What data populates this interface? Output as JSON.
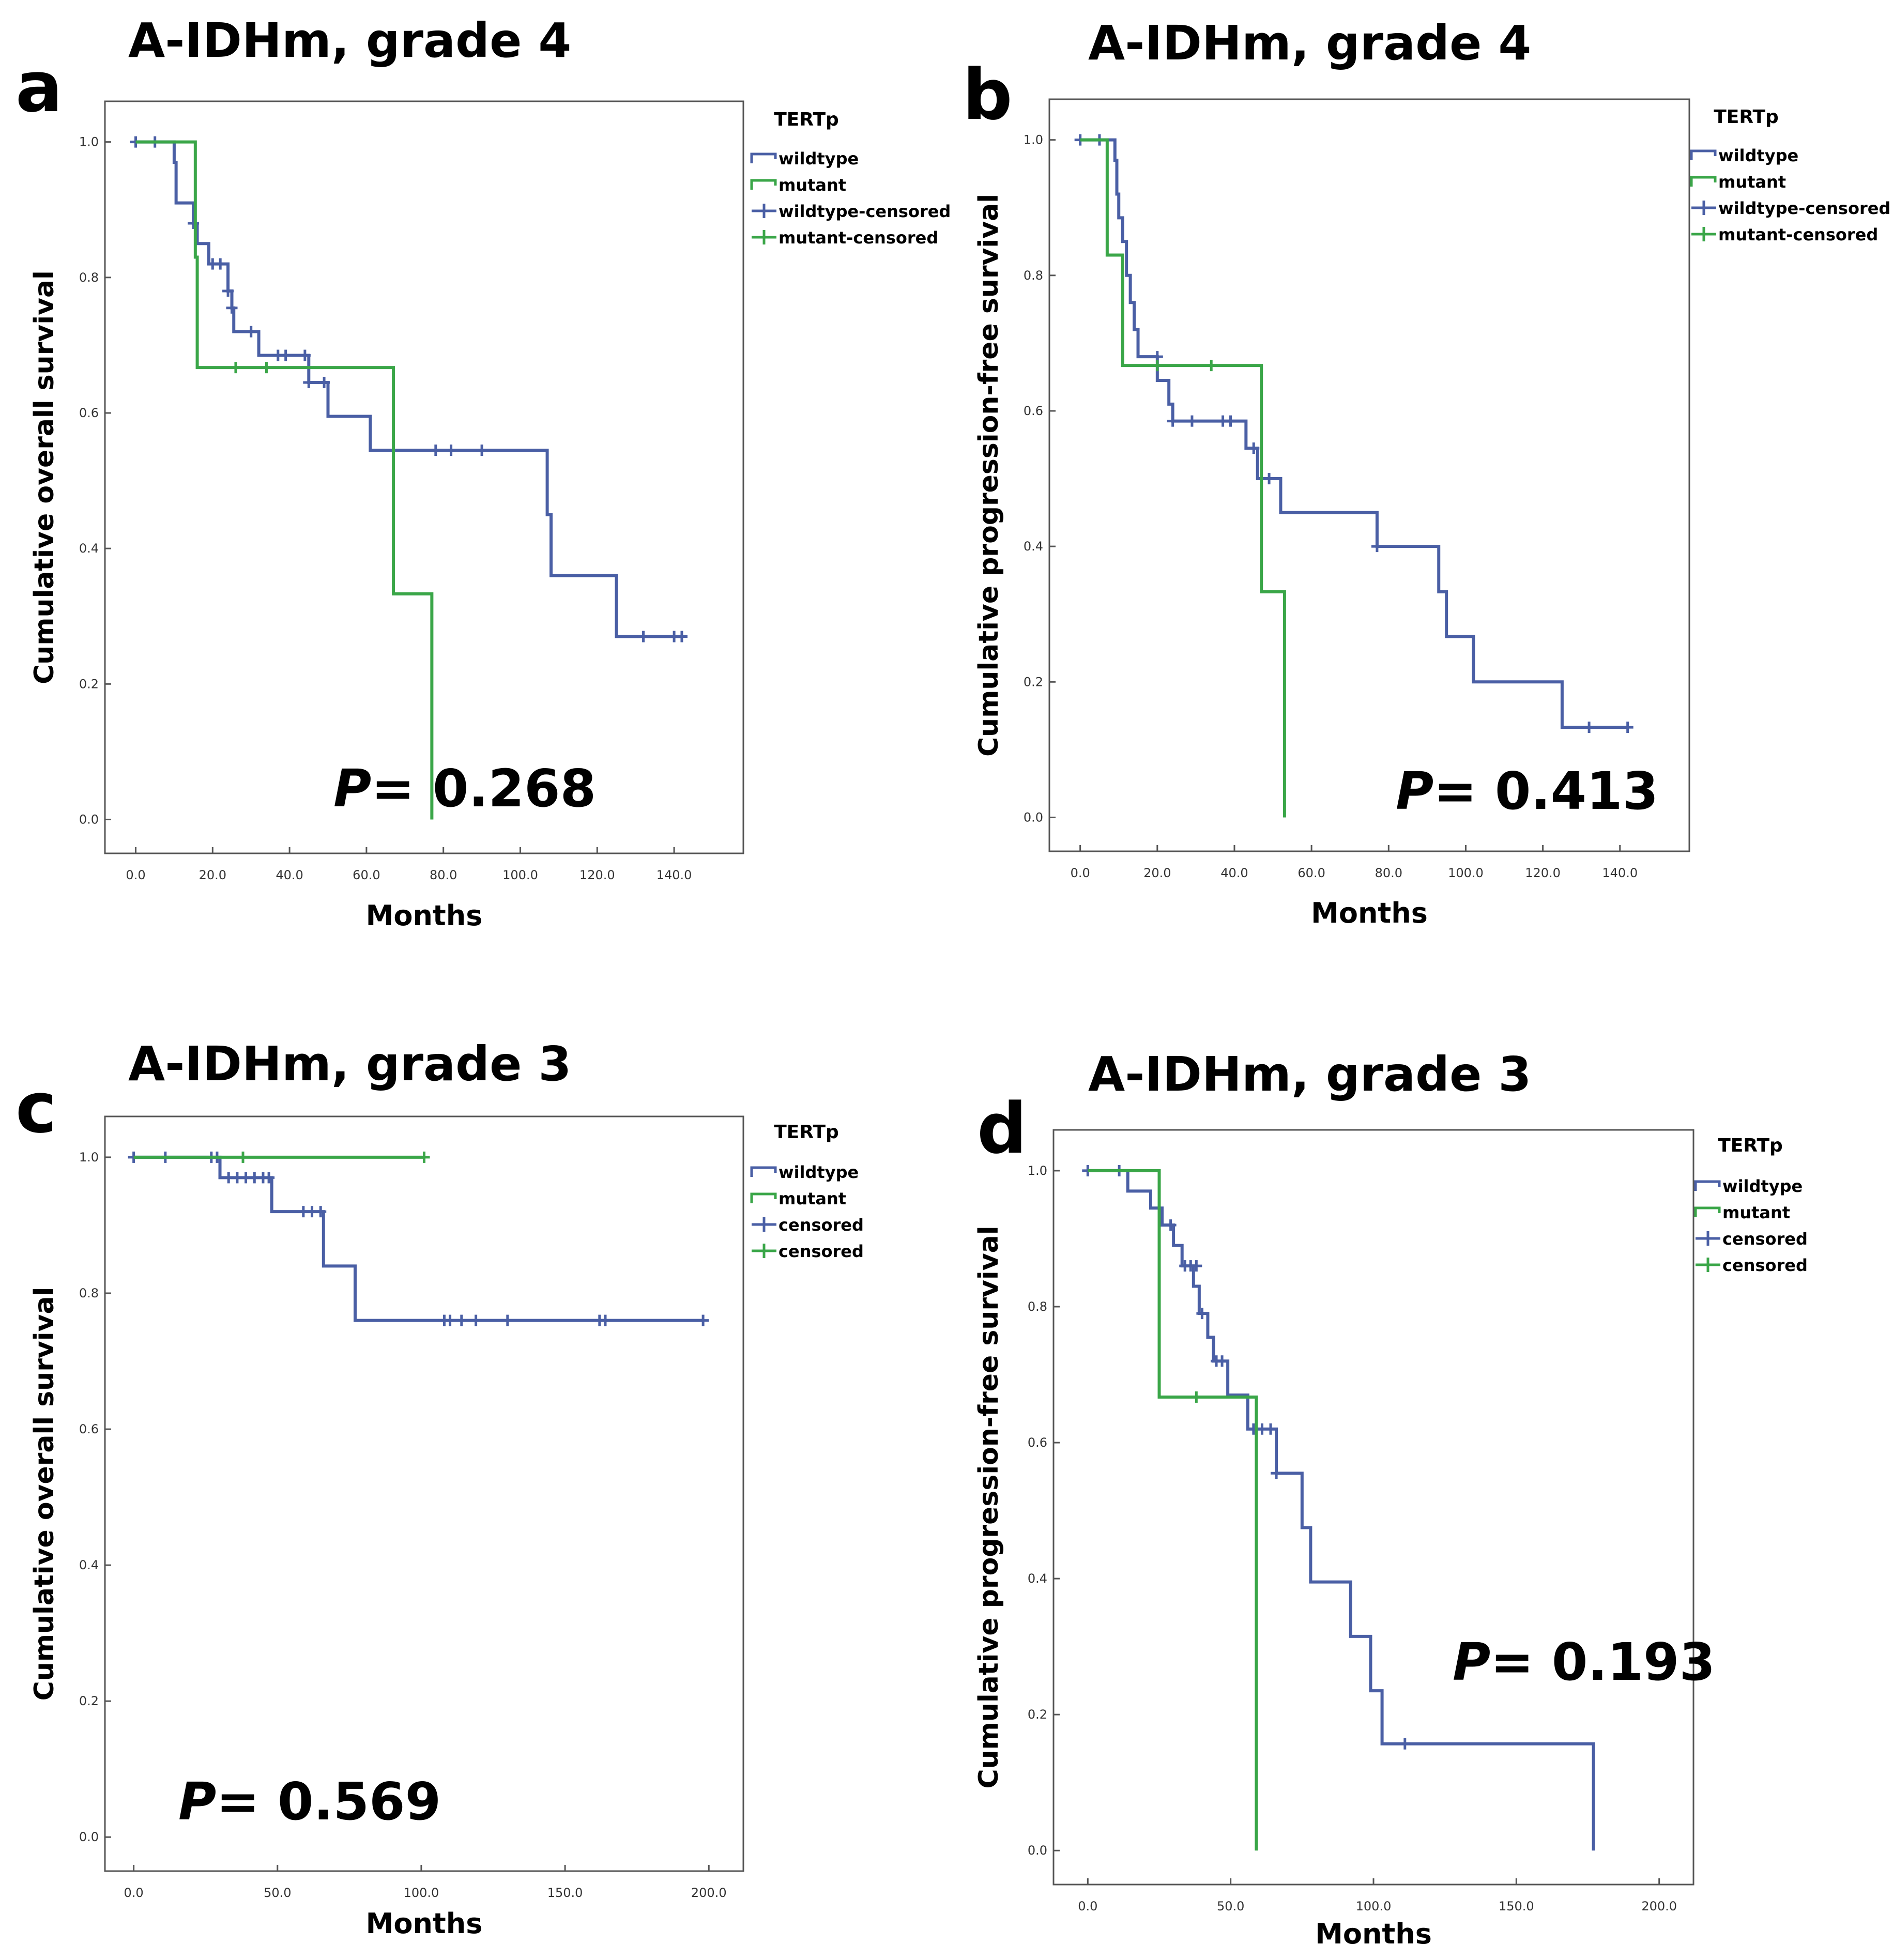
{
  "figure": {
    "panels": [
      {
        "letter": "a",
        "title": "A-IDHm, grade 4",
        "xlabel": "Months",
        "ylabel": "Cumulative overall survival",
        "pvalue_prefix": "P",
        "pvalue_text": "= 0.268",
        "legend_title": "TERTp",
        "legend_items": [
          "wildtype",
          "mutant",
          "wildtype-censored",
          "mutant-censored"
        ],
        "xticks": [
          "0.0",
          "20.0",
          "40.0",
          "60.0",
          "80.0",
          "100.0",
          "120.0",
          "140.0"
        ],
        "yticks": [
          "0.0",
          "0.2",
          "0.4",
          "0.6",
          "0.8",
          "1.0"
        ]
      },
      {
        "letter": "b",
        "title": "A-IDHm, grade 4",
        "xlabel": "Months",
        "ylabel": "Cumulative progression-free survival",
        "pvalue_prefix": "P",
        "pvalue_text": "= 0.413",
        "legend_title": "TERTp",
        "legend_items": [
          "wildtype",
          "mutant",
          "wildtype-censored",
          "mutant-censored"
        ],
        "xticks": [
          "0.0",
          "20.0",
          "40.0",
          "60.0",
          "80.0",
          "100.0",
          "120.0",
          "140.0"
        ],
        "yticks": [
          "0.0",
          "0.2",
          "0.4",
          "0.6",
          "0.8",
          "1.0"
        ]
      },
      {
        "letter": "c",
        "title": "A-IDHm, grade 3",
        "xlabel": "Months",
        "ylabel": "Cumulative overall survival",
        "pvalue_prefix": "P",
        "pvalue_text": "= 0.569",
        "legend_title": "TERTp",
        "legend_items": [
          "wildtype",
          "mutant",
          "censored",
          "censored"
        ],
        "xticks": [
          "0.0",
          "50.0",
          "100.0",
          "150.0",
          "200.0"
        ],
        "yticks": [
          "0.0",
          "0.2",
          "0.4",
          "0.6",
          "0.8",
          "1.0"
        ]
      },
      {
        "letter": "d",
        "title": "A-IDHm, grade 3",
        "xlabel": "Months",
        "ylabel": "Cumulative progression-free survival",
        "pvalue_prefix": "P",
        "pvalue_text": "= 0.193",
        "legend_title": "TERTp",
        "legend_items": [
          "wildtype",
          "mutant",
          "censored",
          "censored"
        ],
        "xticks": [
          "0.0",
          "50.0",
          "100.0",
          "150.0",
          "200.0"
        ],
        "yticks": [
          "0.0",
          "0.2",
          "0.4",
          "0.6",
          "0.8",
          "1.0"
        ]
      }
    ]
  },
  "chart_data": [
    {
      "type": "line",
      "title": "A-IDHm, grade 4",
      "xlabel": "Months",
      "ylabel": "Cumulative overall survival",
      "xlim": [
        -8,
        158
      ],
      "ylim": [
        -0.05,
        1.06
      ],
      "grid": false,
      "legend": "right",
      "series": [
        {
          "name": "wildtype",
          "color": "#4a5fa5",
          "steps": [
            [
              0,
              1.0
            ],
            [
              10,
              0.97
            ],
            [
              10.5,
              0.91
            ],
            [
              15,
              0.88
            ],
            [
              16,
              0.85
            ],
            [
              19,
              0.82
            ],
            [
              24,
              0.78
            ],
            [
              25,
              0.755
            ],
            [
              25.5,
              0.72
            ],
            [
              32,
              0.685
            ],
            [
              45,
              0.645
            ],
            [
              50,
              0.595
            ],
            [
              61,
              0.545
            ],
            [
              107,
              0.45
            ],
            [
              108,
              0.36
            ],
            [
              125,
              0.27
            ],
            [
              142,
              0.27
            ]
          ],
          "censored": [
            [
              0,
              1.0
            ],
            [
              5,
              1.0
            ],
            [
              15,
              0.88
            ],
            [
              20,
              0.82
            ],
            [
              22,
              0.82
            ],
            [
              24,
              0.78
            ],
            [
              25,
              0.755
            ],
            [
              30,
              0.72
            ],
            [
              37,
              0.685
            ],
            [
              39,
              0.685
            ],
            [
              44,
              0.685
            ],
            [
              45,
              0.645
            ],
            [
              49,
              0.645
            ],
            [
              78,
              0.545
            ],
            [
              82,
              0.545
            ],
            [
              90,
              0.545
            ],
            [
              132,
              0.27
            ],
            [
              140,
              0.27
            ],
            [
              142,
              0.27
            ]
          ]
        },
        {
          "name": "mutant",
          "color": "#3aa648",
          "steps": [
            [
              0,
              1.0
            ],
            [
              15.5,
              0.83
            ],
            [
              16,
              0.667
            ],
            [
              67,
              0.333
            ],
            [
              77,
              0.0
            ]
          ],
          "censored": [
            [
              26,
              0.667
            ],
            [
              34,
              0.667
            ]
          ]
        }
      ],
      "annotation": "P= 0.268"
    },
    {
      "type": "line",
      "title": "A-IDHm, grade 4",
      "xlabel": "Months",
      "ylabel": "Cumulative progression-free survival",
      "xlim": [
        -8,
        158
      ],
      "ylim": [
        -0.05,
        1.06
      ],
      "grid": false,
      "legend": "right",
      "series": [
        {
          "name": "wildtype",
          "color": "#4a5fa5",
          "steps": [
            [
              0,
              1.0
            ],
            [
              9,
              0.97
            ],
            [
              9.5,
              0.92
            ],
            [
              10,
              0.885
            ],
            [
              11,
              0.85
            ],
            [
              12,
              0.8
            ],
            [
              13,
              0.76
            ],
            [
              14,
              0.72
            ],
            [
              15,
              0.68
            ],
            [
              20,
              0.645
            ],
            [
              23,
              0.61
            ],
            [
              24,
              0.585
            ],
            [
              43,
              0.545
            ],
            [
              46,
              0.5
            ],
            [
              52,
              0.45
            ],
            [
              77,
              0.4
            ],
            [
              93,
              0.333
            ],
            [
              95,
              0.267
            ],
            [
              102,
              0.2
            ],
            [
              125,
              0.133
            ],
            [
              142,
              0.133
            ]
          ],
          "censored": [
            [
              0,
              1.0
            ],
            [
              5,
              1.0
            ],
            [
              20,
              0.68
            ],
            [
              24,
              0.585
            ],
            [
              29,
              0.585
            ],
            [
              37,
              0.585
            ],
            [
              39,
              0.585
            ],
            [
              45,
              0.545
            ],
            [
              49,
              0.5
            ],
            [
              77,
              0.4
            ],
            [
              132,
              0.133
            ],
            [
              142,
              0.133
            ]
          ]
        },
        {
          "name": "mutant",
          "color": "#3aa648",
          "steps": [
            [
              0,
              1.0
            ],
            [
              7,
              0.83
            ],
            [
              11,
              0.667
            ],
            [
              47,
              0.333
            ],
            [
              53,
              0.0
            ]
          ],
          "censored": [
            [
              20,
              0.667
            ],
            [
              34,
              0.667
            ]
          ]
        }
      ],
      "annotation": "P= 0.413"
    },
    {
      "type": "line",
      "title": "A-IDHm, grade 3",
      "xlabel": "Months",
      "ylabel": "Cumulative overall survival",
      "xlim": [
        -10,
        212
      ],
      "ylim": [
        -0.05,
        1.06
      ],
      "grid": false,
      "legend": "right",
      "series": [
        {
          "name": "wildtype",
          "color": "#4a5fa5",
          "steps": [
            [
              0,
              1.0
            ],
            [
              30,
              0.97
            ],
            [
              48,
              0.92
            ],
            [
              66,
              0.84
            ],
            [
              77,
              0.76
            ],
            [
              198,
              0.76
            ]
          ],
          "censored": [
            [
              0,
              1.0
            ],
            [
              11,
              1.0
            ],
            [
              27,
              1.0
            ],
            [
              29,
              1.0
            ],
            [
              33,
              0.97
            ],
            [
              36,
              0.97
            ],
            [
              39,
              0.97
            ],
            [
              42,
              0.97
            ],
            [
              45,
              0.97
            ],
            [
              47,
              0.97
            ],
            [
              59,
              0.92
            ],
            [
              62,
              0.92
            ],
            [
              65,
              0.92
            ],
            [
              108,
              0.76
            ],
            [
              110,
              0.76
            ],
            [
              114,
              0.76
            ],
            [
              119,
              0.76
            ],
            [
              130,
              0.76
            ],
            [
              162,
              0.76
            ],
            [
              164,
              0.76
            ],
            [
              198,
              0.76
            ]
          ]
        },
        {
          "name": "mutant",
          "color": "#3aa648",
          "steps": [
            [
              0,
              1.0
            ],
            [
              101,
              1.0
            ]
          ],
          "censored": [
            [
              38,
              1.0
            ],
            [
              101,
              1.0
            ]
          ]
        }
      ],
      "annotation": "P= 0.569"
    },
    {
      "type": "line",
      "title": "A-IDHm, grade 3",
      "xlabel": "Months",
      "ylabel": "Cumulative progression-free survival",
      "xlim": [
        -12,
        212
      ],
      "ylim": [
        -0.05,
        1.06
      ],
      "grid": false,
      "legend": "right",
      "series": [
        {
          "name": "wildtype",
          "color": "#4a5fa5",
          "steps": [
            [
              0,
              1.0
            ],
            [
              14,
              0.97
            ],
            [
              22,
              0.945
            ],
            [
              26,
              0.92
            ],
            [
              30,
              0.89
            ],
            [
              33,
              0.86
            ],
            [
              37,
              0.83
            ],
            [
              39,
              0.79
            ],
            [
              42,
              0.755
            ],
            [
              44,
              0.72
            ],
            [
              49,
              0.67
            ],
            [
              56,
              0.62
            ],
            [
              66,
              0.555
            ],
            [
              75,
              0.475
            ],
            [
              78,
              0.395
            ],
            [
              92,
              0.315
            ],
            [
              99,
              0.235
            ],
            [
              103,
              0.157
            ],
            [
              177,
              0.0
            ]
          ],
          "censored": [
            [
              0,
              1.0
            ],
            [
              11,
              1.0
            ],
            [
              29,
              0.92
            ],
            [
              34,
              0.86
            ],
            [
              36,
              0.86
            ],
            [
              38,
              0.86
            ],
            [
              40,
              0.79
            ],
            [
              45,
              0.72
            ],
            [
              47,
              0.72
            ],
            [
              58,
              0.62
            ],
            [
              61,
              0.62
            ],
            [
              64,
              0.62
            ],
            [
              66,
              0.555
            ],
            [
              111,
              0.157
            ]
          ]
        },
        {
          "name": "mutant",
          "color": "#3aa648",
          "steps": [
            [
              0,
              1.0
            ],
            [
              25,
              0.667
            ],
            [
              59,
              0.0
            ]
          ],
          "censored": [
            [
              38,
              0.667
            ]
          ]
        }
      ],
      "annotation": "P= 0.193"
    }
  ]
}
